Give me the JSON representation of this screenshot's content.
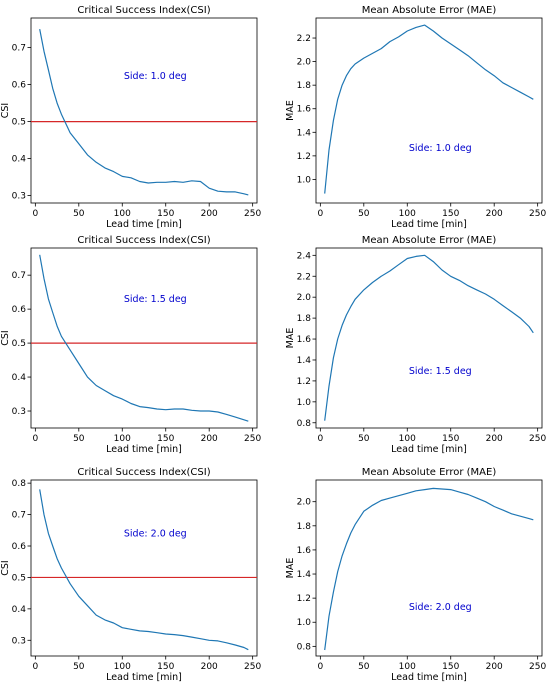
{
  "chart_data": [
    {
      "type": "line",
      "title": "Critical Success Index(CSI)",
      "xlabel": "Lead time [min]",
      "ylabel": "CSI",
      "annotation": "Side: 1.0 deg",
      "xlim": [
        -5,
        255
      ],
      "ylim": [
        0.28,
        0.78
      ],
      "xticks": [
        0,
        50,
        100,
        150,
        200,
        250
      ],
      "yticks": [
        0.3,
        0.4,
        0.5,
        0.6,
        0.7
      ],
      "hline": 0.5,
      "colors": {
        "line": "#1f77b4",
        "hline": "#d62728",
        "annotation": "#0000cd"
      },
      "series": [
        {
          "x": [
            5,
            10,
            15,
            20,
            25,
            30,
            40,
            50,
            60,
            70,
            80,
            90,
            100,
            110,
            120,
            130,
            140,
            150,
            160,
            170,
            180,
            190,
            200,
            210,
            220,
            230,
            240,
            245
          ],
          "values": [
            0.75,
            0.69,
            0.64,
            0.59,
            0.55,
            0.52,
            0.47,
            0.44,
            0.41,
            0.39,
            0.375,
            0.365,
            0.352,
            0.348,
            0.338,
            0.334,
            0.336,
            0.336,
            0.338,
            0.336,
            0.34,
            0.338,
            0.32,
            0.312,
            0.31,
            0.31,
            0.305,
            0.302
          ]
        }
      ]
    },
    {
      "type": "line",
      "title": "Mean Absolute Error (MAE)",
      "xlabel": "Lead time [min]",
      "ylabel": "MAE",
      "annotation": "Side: 1.0 deg",
      "xlim": [
        -5,
        255
      ],
      "ylim": [
        0.8,
        2.37
      ],
      "xticks": [
        0,
        50,
        100,
        150,
        200,
        250
      ],
      "yticks": [
        1.0,
        1.2,
        1.4,
        1.6,
        1.8,
        2.0,
        2.2
      ],
      "colors": {
        "line": "#1f77b4",
        "annotation": "#0000cd"
      },
      "series": [
        {
          "x": [
            5,
            10,
            15,
            20,
            25,
            30,
            35,
            40,
            50,
            60,
            70,
            80,
            90,
            100,
            110,
            120,
            130,
            140,
            150,
            160,
            170,
            180,
            190,
            200,
            210,
            220,
            230,
            240,
            245
          ],
          "values": [
            0.88,
            1.25,
            1.5,
            1.68,
            1.8,
            1.88,
            1.94,
            1.98,
            2.03,
            2.07,
            2.11,
            2.17,
            2.21,
            2.26,
            2.29,
            2.31,
            2.26,
            2.2,
            2.15,
            2.1,
            2.05,
            1.99,
            1.93,
            1.88,
            1.82,
            1.78,
            1.74,
            1.7,
            1.68
          ]
        }
      ]
    },
    {
      "type": "line",
      "title": "Critical Success Index(CSI)",
      "xlabel": "Lead time [min]",
      "ylabel": "CSI",
      "annotation": "Side: 1.5 deg",
      "xlim": [
        -5,
        255
      ],
      "ylim": [
        0.25,
        0.78
      ],
      "xticks": [
        0,
        50,
        100,
        150,
        200,
        250
      ],
      "yticks": [
        0.3,
        0.4,
        0.5,
        0.6,
        0.7
      ],
      "hline": 0.5,
      "colors": {
        "line": "#1f77b4",
        "hline": "#d62728",
        "annotation": "#0000cd"
      },
      "series": [
        {
          "x": [
            5,
            10,
            15,
            20,
            25,
            30,
            40,
            50,
            60,
            70,
            80,
            90,
            100,
            110,
            120,
            130,
            140,
            150,
            160,
            170,
            180,
            190,
            200,
            210,
            220,
            230,
            240,
            245
          ],
          "values": [
            0.76,
            0.69,
            0.63,
            0.59,
            0.55,
            0.52,
            0.48,
            0.44,
            0.4,
            0.375,
            0.36,
            0.345,
            0.335,
            0.322,
            0.313,
            0.31,
            0.306,
            0.304,
            0.306,
            0.306,
            0.302,
            0.3,
            0.3,
            0.297,
            0.29,
            0.282,
            0.274,
            0.27
          ]
        }
      ]
    },
    {
      "type": "line",
      "title": "Mean Absolute Error (MAE)",
      "xlabel": "Lead time [min]",
      "ylabel": "MAE",
      "annotation": "Side: 1.5 deg",
      "xlim": [
        -5,
        255
      ],
      "ylim": [
        0.75,
        2.47
      ],
      "xticks": [
        0,
        50,
        100,
        150,
        200,
        250
      ],
      "yticks": [
        0.8,
        1.0,
        1.2,
        1.4,
        1.6,
        1.8,
        2.0,
        2.2,
        2.4
      ],
      "colors": {
        "line": "#1f77b4",
        "annotation": "#0000cd"
      },
      "series": [
        {
          "x": [
            5,
            10,
            15,
            20,
            25,
            30,
            35,
            40,
            50,
            60,
            70,
            80,
            90,
            100,
            110,
            120,
            130,
            140,
            150,
            160,
            170,
            180,
            190,
            200,
            210,
            220,
            230,
            240,
            245
          ],
          "values": [
            0.82,
            1.15,
            1.42,
            1.6,
            1.73,
            1.83,
            1.91,
            1.98,
            2.07,
            2.14,
            2.2,
            2.25,
            2.31,
            2.37,
            2.39,
            2.4,
            2.34,
            2.26,
            2.2,
            2.16,
            2.11,
            2.07,
            2.03,
            1.98,
            1.92,
            1.86,
            1.8,
            1.72,
            1.66
          ]
        }
      ]
    },
    {
      "type": "line",
      "title": "Critical Success Index(CSI)",
      "xlabel": "Lead time [min]",
      "ylabel": "CSI",
      "annotation": "Side: 2.0 deg",
      "xlim": [
        -5,
        255
      ],
      "ylim": [
        0.25,
        0.81
      ],
      "xticks": [
        0,
        50,
        100,
        150,
        200,
        250
      ],
      "yticks": [
        0.3,
        0.4,
        0.5,
        0.6,
        0.7,
        0.8
      ],
      "hline": 0.5,
      "colors": {
        "line": "#1f77b4",
        "hline": "#d62728",
        "annotation": "#0000cd"
      },
      "series": [
        {
          "x": [
            5,
            10,
            15,
            20,
            25,
            30,
            40,
            50,
            60,
            70,
            80,
            90,
            100,
            110,
            120,
            130,
            140,
            150,
            160,
            170,
            180,
            190,
            200,
            210,
            220,
            230,
            240,
            245
          ],
          "values": [
            0.78,
            0.7,
            0.64,
            0.6,
            0.56,
            0.53,
            0.48,
            0.44,
            0.41,
            0.38,
            0.365,
            0.355,
            0.34,
            0.335,
            0.33,
            0.328,
            0.324,
            0.32,
            0.318,
            0.315,
            0.31,
            0.305,
            0.3,
            0.298,
            0.292,
            0.285,
            0.277,
            0.27
          ]
        }
      ]
    },
    {
      "type": "line",
      "title": "Mean Absolute Error (MAE)",
      "xlabel": "Lead time [min]",
      "ylabel": "MAE",
      "annotation": "Side: 2.0 deg",
      "xlim": [
        -5,
        255
      ],
      "ylim": [
        0.72,
        2.18
      ],
      "xticks": [
        0,
        50,
        100,
        150,
        200,
        250
      ],
      "yticks": [
        0.8,
        1.0,
        1.2,
        1.4,
        1.6,
        1.8,
        2.0
      ],
      "colors": {
        "line": "#1f77b4",
        "annotation": "#0000cd"
      },
      "series": [
        {
          "x": [
            5,
            10,
            15,
            20,
            25,
            30,
            35,
            40,
            50,
            60,
            70,
            80,
            90,
            100,
            110,
            120,
            130,
            140,
            150,
            160,
            170,
            180,
            190,
            200,
            210,
            220,
            230,
            240,
            245
          ],
          "values": [
            0.77,
            1.05,
            1.25,
            1.42,
            1.55,
            1.65,
            1.74,
            1.81,
            1.92,
            1.97,
            2.01,
            2.03,
            2.05,
            2.07,
            2.09,
            2.1,
            2.11,
            2.105,
            2.1,
            2.08,
            2.06,
            2.03,
            2.0,
            1.96,
            1.93,
            1.9,
            1.88,
            1.86,
            1.85
          ]
        }
      ]
    }
  ]
}
